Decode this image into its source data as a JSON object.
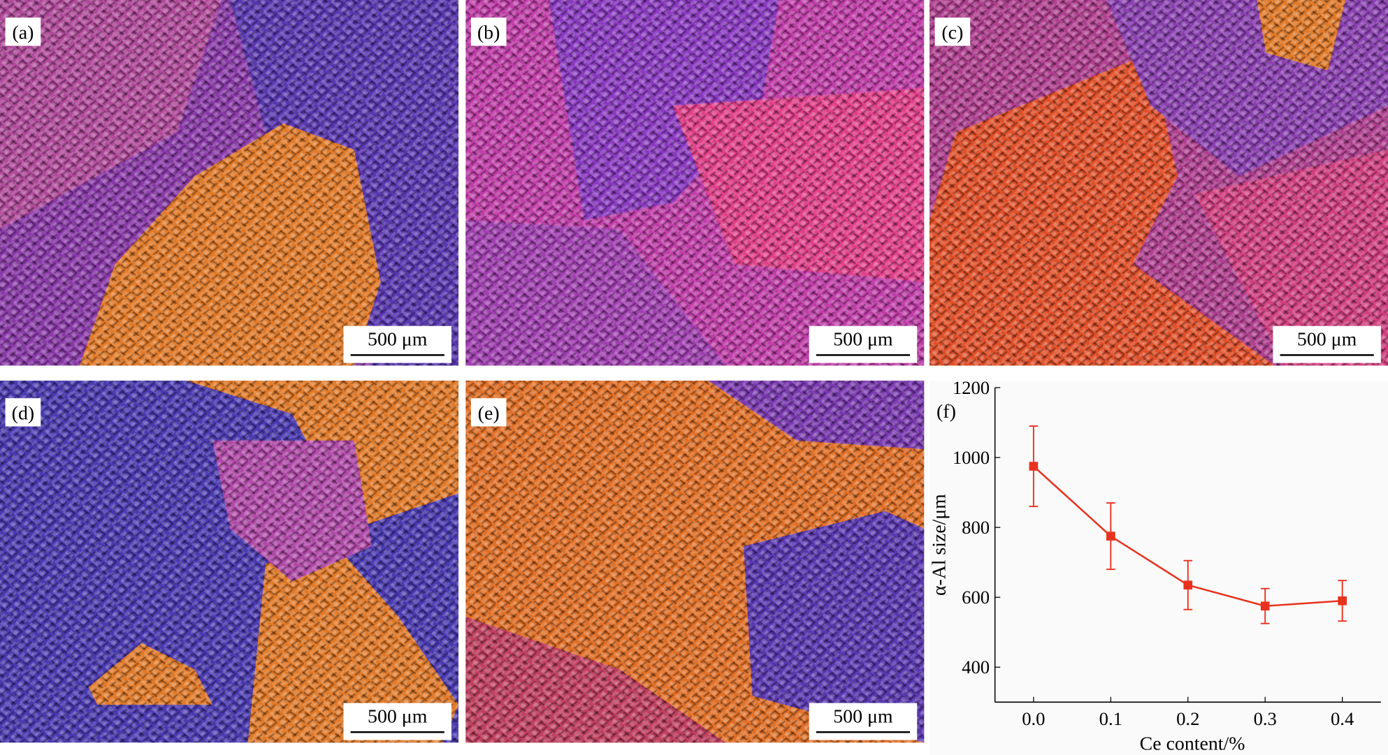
{
  "panels": [
    {
      "label": "(a)",
      "scale_bar": "500 μm"
    },
    {
      "label": "(b)",
      "scale_bar": "500 μm"
    },
    {
      "label": "(c)",
      "scale_bar": "500 μm"
    },
    {
      "label": "(d)",
      "scale_bar": "500 μm"
    },
    {
      "label": "(e)",
      "scale_bar": "500 μm"
    }
  ],
  "chart_data": {
    "type": "line",
    "title": "(f)",
    "x_label": "Ce content/%",
    "y_label": "α-Al size/μm",
    "x": [
      0.0,
      0.1,
      0.2,
      0.3,
      0.4
    ],
    "values": [
      975,
      775,
      635,
      575,
      590
    ],
    "errors": [
      115,
      95,
      70,
      50,
      58
    ],
    "color": "#e8321e",
    "xlim": [
      -0.05,
      0.45
    ],
    "xticks": [
      {
        "value": 0,
        "label": "0.0"
      },
      {
        "value": 0.1,
        "label": "0.1"
      },
      {
        "value": 0.2,
        "label": "0.2"
      },
      {
        "value": 0.3,
        "label": "0.3"
      },
      {
        "value": 0.4,
        "label": "0.4"
      }
    ],
    "ylim": [
      300,
      1200
    ],
    "yticks": [
      400,
      600,
      800,
      1000,
      1200
    ]
  }
}
